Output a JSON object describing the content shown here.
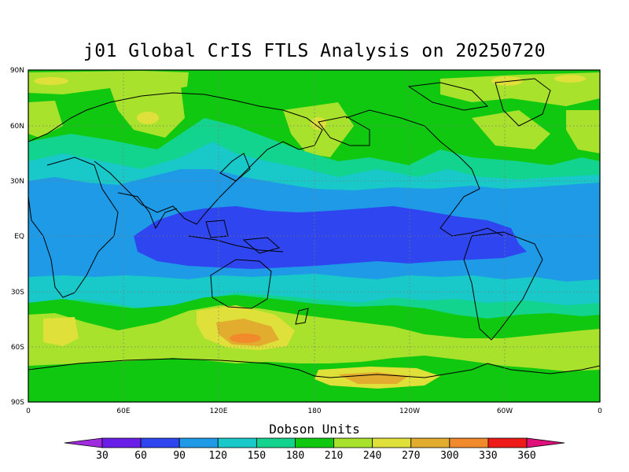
{
  "title": "j01 Global CrIS FTLS Analysis on 20250720",
  "lat_labels": [
    "90N",
    "60N",
    "30N",
    "EQ",
    "30S",
    "60S",
    "90S"
  ],
  "lon_labels": [
    "0",
    "60E",
    "120E",
    "180",
    "120W",
    "60W",
    "0"
  ],
  "colorbar": {
    "title": "Dobson Units",
    "levels": [
      30,
      60,
      90,
      120,
      150,
      180,
      210,
      240,
      270,
      300,
      330,
      360
    ],
    "colors": [
      "#a02ce0",
      "#6a1fe8",
      "#2e45f0",
      "#1f9ae6",
      "#19c8c8",
      "#13d48e",
      "#10c810",
      "#a8e22c",
      "#e0e03a",
      "#e2ad2e",
      "#f08a2a",
      "#ee1a1a",
      "#e0107a"
    ]
  },
  "map": {
    "field": "total column ozone",
    "units": "Dobson Units",
    "lon_range": [
      0,
      360
    ],
    "lat_range": [
      -90,
      90
    ]
  }
}
